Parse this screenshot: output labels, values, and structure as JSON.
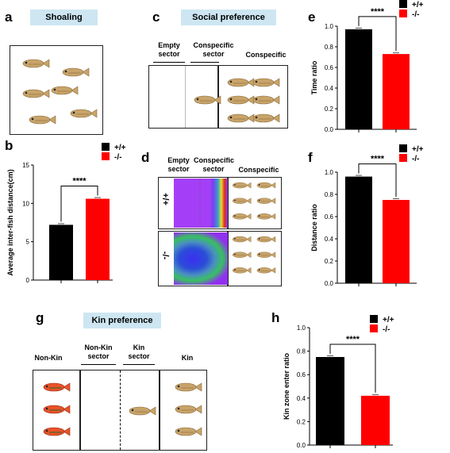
{
  "panels": {
    "a": {
      "letter": "a",
      "title": "Shoaling"
    },
    "b": {
      "letter": "b"
    },
    "c": {
      "letter": "c",
      "title": "Social preference",
      "labels": [
        "Empty sector",
        "Conspecific sector",
        "Conspecific"
      ]
    },
    "d": {
      "letter": "d",
      "labels": [
        "Empty sector",
        "Conspecific sector",
        "Conspecific"
      ],
      "rows": [
        "+/+",
        "-/-"
      ]
    },
    "e": {
      "letter": "e"
    },
    "f": {
      "letter": "f"
    },
    "g": {
      "letter": "g",
      "title": "Kin preference",
      "labels": [
        "Non-Kin",
        "Non-Kin sector",
        "Kin sector",
        "Kin"
      ]
    },
    "h": {
      "letter": "h"
    }
  },
  "significance": "****",
  "colors": {
    "wt": "#000000",
    "mut": "#ff0000",
    "banner": "#cde6f2",
    "fish": "#c8a46a",
    "redfish": "#e8522a"
  },
  "chart_data": [
    {
      "id": "b",
      "type": "bar",
      "categories": [
        "+/+",
        "-/-"
      ],
      "values": [
        7.2,
        10.6
      ],
      "ylabel": "Average inter-fish distance(cm)",
      "ylim": [
        0,
        15
      ],
      "yticks": [
        0,
        5,
        10,
        15
      ],
      "legend": [
        "+/+",
        "-/-"
      ],
      "legend_position": "top-right"
    },
    {
      "id": "e",
      "type": "bar",
      "categories": [
        "+/+",
        "-/-"
      ],
      "values": [
        0.97,
        0.73
      ],
      "ylabel": "Time ratio",
      "ylim": [
        0,
        1.0
      ],
      "yticks": [
        0.0,
        0.2,
        0.4,
        0.6,
        0.8,
        1.0
      ],
      "legend": [
        "+/+",
        "-/-"
      ],
      "legend_position": "top-right"
    },
    {
      "id": "f",
      "type": "bar",
      "categories": [
        "+/+",
        "-/-"
      ],
      "values": [
        0.96,
        0.75
      ],
      "ylabel": "Distance ratio",
      "ylim": [
        0,
        1.0
      ],
      "yticks": [
        0.0,
        0.2,
        0.4,
        0.6,
        0.8,
        1.0
      ],
      "legend": [
        "+/+",
        "-/-"
      ],
      "legend_position": "top-right"
    },
    {
      "id": "h",
      "type": "bar",
      "categories": [
        "+/+",
        "-/-"
      ],
      "values": [
        0.75,
        0.42
      ],
      "ylabel": "Kin zone enter ratio",
      "ylim": [
        0,
        1.0
      ],
      "yticks": [
        0.0,
        0.2,
        0.4,
        0.6,
        0.8,
        1.0
      ],
      "legend": [
        "+/+",
        "-/-"
      ],
      "legend_position": "top-right"
    }
  ]
}
